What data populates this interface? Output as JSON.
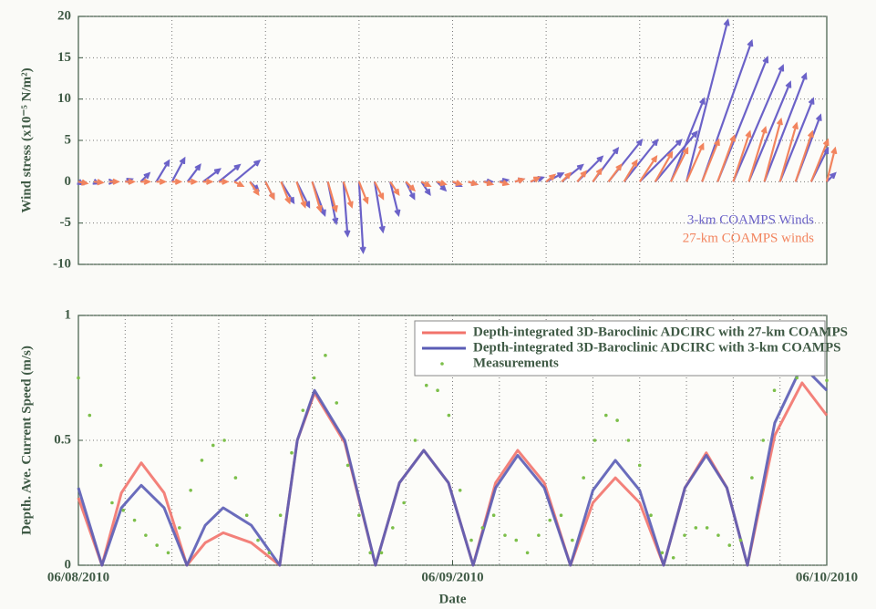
{
  "chart_data": [
    {
      "type": "quiver",
      "ylabel": "Wind stress (x10⁻⁵ N/m²)",
      "xlim": [
        0,
        2
      ],
      "xgrid": [
        0.25,
        0.5,
        0.75,
        1,
        1.25,
        1.5,
        1.75
      ],
      "ylim": [
        -10,
        20
      ],
      "yticks": [
        -10,
        -5,
        0,
        5,
        10,
        15,
        20
      ],
      "grid": true,
      "legend": "lower right",
      "series": [
        {
          "name": "3-km COAMPS Winds",
          "color": "#6b62c8",
          "x": [
            0,
            0.0417,
            0.0833,
            0.125,
            0.1667,
            0.2083,
            0.25,
            0.2917,
            0.3333,
            0.375,
            0.4167,
            0.4583,
            0.5,
            0.5417,
            0.5833,
            0.625,
            0.6667,
            0.7083,
            0.75,
            0.7917,
            0.8333,
            0.875,
            0.9167,
            0.9583,
            1,
            1.0417,
            1.0833,
            1.125,
            1.1667,
            1.2083,
            1.25,
            1.2917,
            1.3333,
            1.375,
            1.4167,
            1.4583,
            1.5,
            1.5417,
            1.5833,
            1.625,
            1.6667,
            1.7083,
            1.75,
            1.7917,
            1.8333,
            1.875,
            1.9167,
            1.9583,
            2
          ],
          "u": [
            0.5,
            0.5,
            0.5,
            0.8,
            1,
            1.5,
            1.5,
            1.5,
            2,
            2.5,
            3,
            1,
            1,
            1.5,
            1.5,
            1.5,
            1,
            0.5,
            0.5,
            1,
            1,
            1,
            1,
            1,
            1,
            1,
            1,
            1,
            1,
            1.5,
            2,
            2.5,
            3,
            3,
            4,
            4,
            5,
            5,
            4,
            5,
            6,
            6,
            6,
            5,
            5,
            4,
            3,
            2,
            1
          ],
          "v": [
            -0.3,
            -0.2,
            0,
            0.3,
            1,
            2.5,
            2.8,
            2,
            1.5,
            2,
            2.5,
            -1,
            -2,
            -2.5,
            -3,
            -4,
            -5,
            -6.5,
            -8.5,
            -6,
            -4,
            -2,
            -1.5,
            -1,
            -0.5,
            -0.3,
            0,
            0.2,
            0.3,
            0.5,
            1,
            2,
            3,
            4,
            5,
            5,
            5,
            6,
            10,
            19.5,
            17,
            15,
            14,
            12,
            13,
            10,
            8,
            4,
            1
          ]
        },
        {
          "name": "27-km COAMPS winds",
          "color": "#f2845e",
          "x": [
            0,
            0.0417,
            0.0833,
            0.125,
            0.1667,
            0.2083,
            0.25,
            0.2917,
            0.3333,
            0.375,
            0.4167,
            0.4583,
            0.5,
            0.5417,
            0.5833,
            0.625,
            0.6667,
            0.7083,
            0.75,
            0.7917,
            0.8333,
            0.875,
            0.9167,
            0.9583,
            1,
            1.0417,
            1.0833,
            1.125,
            1.1667,
            1.2083,
            1.25,
            1.2917,
            1.3333,
            1.375,
            1.4167,
            1.4583,
            1.5,
            1.5417,
            1.5833,
            1.625,
            1.6667,
            1.7083,
            1.75,
            1.7917,
            1.8333,
            1.875,
            1.9167,
            1.9583,
            2
          ],
          "u": [
            1,
            1,
            1,
            1,
            1,
            1,
            1,
            1,
            1,
            1,
            1,
            1,
            1,
            1,
            1,
            1,
            1,
            1,
            1,
            1,
            1,
            1,
            1,
            1,
            1,
            1,
            1,
            1,
            1,
            1,
            1,
            1,
            1,
            1,
            1.5,
            1.5,
            2,
            2,
            2,
            2,
            2,
            2,
            2,
            2,
            2,
            2,
            2,
            2,
            1
          ],
          "v": [
            -0.2,
            -0.1,
            0,
            0,
            0,
            0,
            0,
            0,
            0,
            0,
            -0.5,
            -1.5,
            -2,
            -2.5,
            -3,
            -3.5,
            -3.5,
            -3,
            -2.5,
            -2,
            -1.5,
            -1,
            -0.5,
            -0.3,
            -0.3,
            -0.3,
            -0.3,
            -0.3,
            0.3,
            0.5,
            0.8,
            1,
            1.2,
            1.5,
            2,
            2.5,
            3,
            3.5,
            4,
            4.5,
            5,
            5.5,
            6,
            6.5,
            7.5,
            7,
            6,
            5,
            4
          ]
        }
      ]
    },
    {
      "type": "line",
      "ylabel": "Depth. Ave. Current Speed (m/s)",
      "xlabel": "Date",
      "xlim": [
        0,
        2
      ],
      "xticks": [
        {
          "value": 0,
          "label": "06/08/2010"
        },
        {
          "value": 1,
          "label": "06/09/2010"
        },
        {
          "value": 2,
          "label": "06/10/2010"
        }
      ],
      "xgrid": [
        0.125,
        0.25,
        0.375,
        0.5,
        0.625,
        0.75,
        0.875,
        1,
        1.125,
        1.25,
        1.375,
        1.5,
        1.625,
        1.75,
        1.875
      ],
      "ylim": [
        0,
        1
      ],
      "yticks": [
        0,
        0.5,
        1
      ],
      "grid": true,
      "legend": "upper right",
      "series": [
        {
          "name": "Depth-integrated 3D-Baroclinic ADCIRC with 27-km COAMPS",
          "color": "#f2736b",
          "mode": "line",
          "x": [
            0,
            0.063,
            0.115,
            0.168,
            0.229,
            0.29,
            0.339,
            0.387,
            0.462,
            0.538,
            0.585,
            0.631,
            0.712,
            0.794,
            0.858,
            0.923,
            0.989,
            1.055,
            1.115,
            1.174,
            1.245,
            1.315,
            1.375,
            1.435,
            1.5,
            1.564,
            1.621,
            1.678,
            1.733,
            1.788,
            1.861,
            1.934,
            2
          ],
          "values": [
            0.27,
            0,
            0.29,
            0.41,
            0.29,
            0,
            0.09,
            0.13,
            0.09,
            0,
            0.5,
            0.69,
            0.49,
            0,
            0.33,
            0.46,
            0.33,
            0,
            0.33,
            0.46,
            0.33,
            0,
            0.25,
            0.35,
            0.25,
            0,
            0.31,
            0.45,
            0.31,
            0,
            0.52,
            0.73,
            0.6
          ]
        },
        {
          "name": "Depth-integrated 3D-Baroclinic ADCIRC with 3-km COAMPS",
          "color": "#5a5cb5",
          "mode": "line",
          "x": [
            0,
            0.063,
            0.115,
            0.168,
            0.229,
            0.29,
            0.339,
            0.387,
            0.462,
            0.538,
            0.585,
            0.631,
            0.712,
            0.794,
            0.858,
            0.923,
            0.989,
            1.055,
            1.115,
            1.174,
            1.245,
            1.315,
            1.375,
            1.435,
            1.5,
            1.564,
            1.621,
            1.678,
            1.733,
            1.788,
            1.861,
            1.934,
            2
          ],
          "values": [
            0.31,
            0,
            0.23,
            0.32,
            0.23,
            0,
            0.16,
            0.23,
            0.16,
            0,
            0.5,
            0.7,
            0.5,
            0,
            0.33,
            0.46,
            0.33,
            0,
            0.31,
            0.44,
            0.31,
            0,
            0.3,
            0.42,
            0.3,
            0,
            0.31,
            0.44,
            0.31,
            0,
            0.57,
            0.8,
            0.7
          ]
        },
        {
          "name": "Measurements",
          "color": "#7cbf4a",
          "mode": "markers",
          "x": [
            0,
            0.03,
            0.06,
            0.09,
            0.12,
            0.15,
            0.18,
            0.21,
            0.24,
            0.27,
            0.3,
            0.33,
            0.36,
            0.39,
            0.42,
            0.45,
            0.48,
            0.51,
            0.54,
            0.57,
            0.6,
            0.63,
            0.66,
            0.69,
            0.72,
            0.75,
            0.78,
            0.81,
            0.84,
            0.87,
            0.9,
            0.93,
            0.96,
            0.99,
            1.02,
            1.05,
            1.08,
            1.11,
            1.14,
            1.17,
            1.2,
            1.23,
            1.26,
            1.29,
            1.32,
            1.35,
            1.38,
            1.41,
            1.44,
            1.47,
            1.5,
            1.53,
            1.56,
            1.59,
            1.62,
            1.65,
            1.68,
            1.71,
            1.74,
            1.77,
            1.8,
            1.83,
            1.86,
            1.89,
            1.92,
            1.95,
            1.98,
            2
          ],
          "values": [
            0.75,
            0.6,
            0.4,
            0.25,
            0.22,
            0.18,
            0.12,
            0.08,
            0.05,
            0.15,
            0.3,
            0.42,
            0.48,
            0.5,
            0.35,
            0.2,
            0.1,
            0.05,
            0.2,
            0.45,
            0.62,
            0.75,
            0.84,
            0.65,
            0.4,
            0.2,
            0.05,
            0.05,
            0.15,
            0.25,
            0.5,
            0.72,
            0.7,
            0.6,
            0.3,
            0.1,
            0.15,
            0.2,
            0.12,
            0.1,
            0.05,
            0.12,
            0.18,
            0.2,
            0.1,
            0.35,
            0.5,
            0.6,
            0.58,
            0.5,
            0.4,
            0.2,
            0.05,
            0.03,
            0.12,
            0.15,
            0.15,
            0.12,
            0.08,
            0.1,
            0.35,
            0.5,
            0.7,
            0.82,
            0.75,
            0.8,
            0.78,
            0.74
          ]
        }
      ]
    }
  ]
}
